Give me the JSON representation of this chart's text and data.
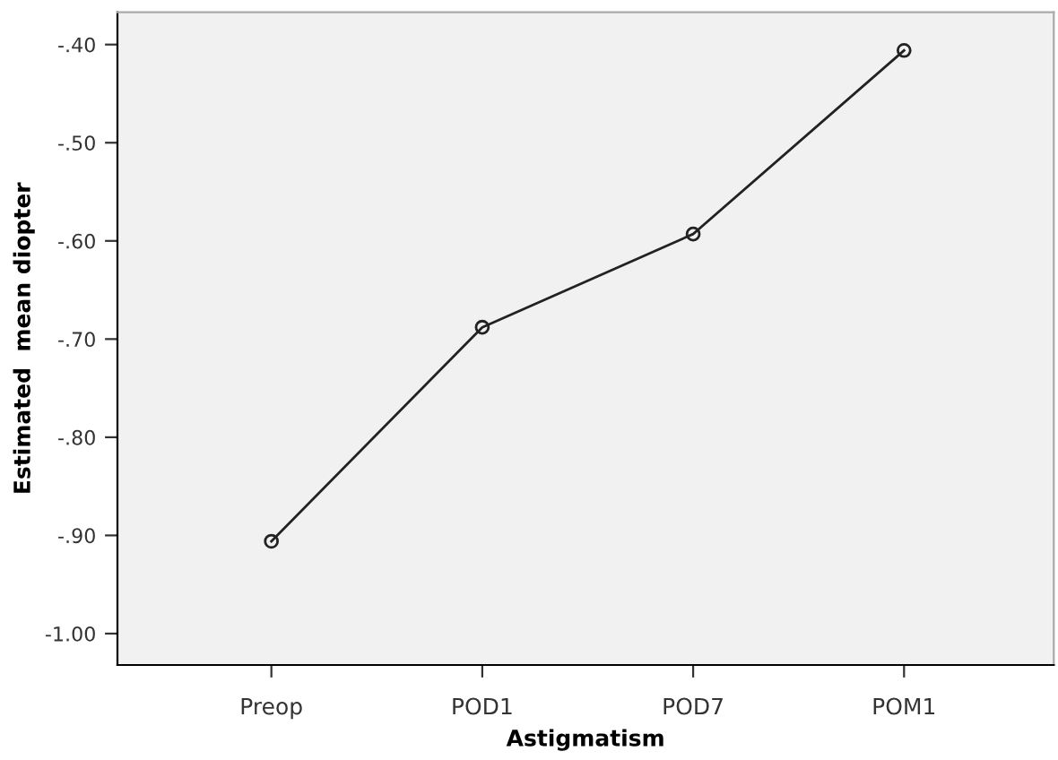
{
  "chart_data": {
    "type": "line",
    "xlabel": "Astigmatism",
    "ylabel": "Estimated  mean diopter",
    "categories": [
      "Preop",
      "POD1",
      "POD7",
      "POM1"
    ],
    "series": [
      {
        "color": "#222222",
        "values": [
          -0.906,
          -0.688,
          -0.593,
          -0.406
        ]
      }
    ],
    "marker": "circle",
    "line_style": "solid",
    "grid": false,
    "legend": false,
    "ylim": [
      -1.032,
      -0.367
    ],
    "yticks": [
      {
        "value": -1.0,
        "label": "-1.00"
      },
      {
        "value": -0.9,
        "label": "-.90"
      },
      {
        "value": -0.8,
        "label": "-.80"
      },
      {
        "value": -0.7,
        "label": "-.70"
      },
      {
        "value": -0.6,
        "label": "-.60"
      },
      {
        "value": -0.5,
        "label": "-.50"
      },
      {
        "value": -0.4,
        "label": "-.40"
      }
    ]
  }
}
